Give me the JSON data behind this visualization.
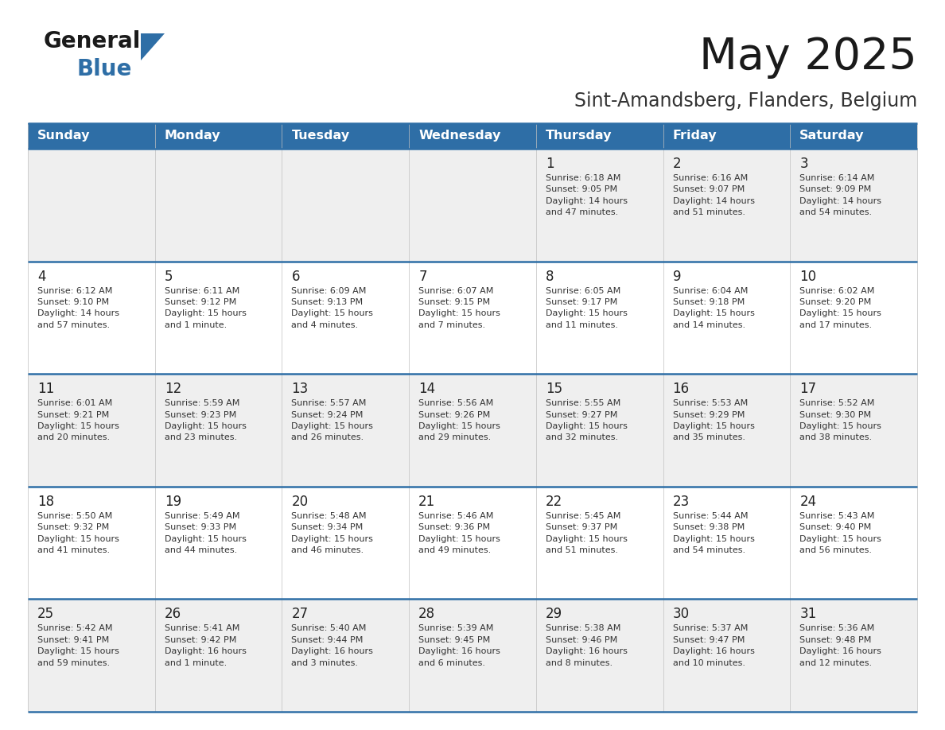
{
  "title": "May 2025",
  "subtitle": "Sint-Amandsberg, Flanders, Belgium",
  "header_bg": "#2E6EA6",
  "header_text_color": "#FFFFFF",
  "day_names": [
    "Sunday",
    "Monday",
    "Tuesday",
    "Wednesday",
    "Thursday",
    "Friday",
    "Saturday"
  ],
  "row_bg_even": "#EFEFEF",
  "row_bg_odd": "#FFFFFF",
  "grid_line_color": "#2E6EA6",
  "separator_line_color": "#3A6EA0",
  "text_color": "#333333",
  "day_num_color": "#222222",
  "logo_general_color": "#1A1A1A",
  "logo_blue_color": "#2E6EA6",
  "logo_triangle_color": "#2E6EA6",
  "weeks": [
    [
      {
        "day": null,
        "info": null
      },
      {
        "day": null,
        "info": null
      },
      {
        "day": null,
        "info": null
      },
      {
        "day": null,
        "info": null
      },
      {
        "day": 1,
        "info": "Sunrise: 6:18 AM\nSunset: 9:05 PM\nDaylight: 14 hours\nand 47 minutes."
      },
      {
        "day": 2,
        "info": "Sunrise: 6:16 AM\nSunset: 9:07 PM\nDaylight: 14 hours\nand 51 minutes."
      },
      {
        "day": 3,
        "info": "Sunrise: 6:14 AM\nSunset: 9:09 PM\nDaylight: 14 hours\nand 54 minutes."
      }
    ],
    [
      {
        "day": 4,
        "info": "Sunrise: 6:12 AM\nSunset: 9:10 PM\nDaylight: 14 hours\nand 57 minutes."
      },
      {
        "day": 5,
        "info": "Sunrise: 6:11 AM\nSunset: 9:12 PM\nDaylight: 15 hours\nand 1 minute."
      },
      {
        "day": 6,
        "info": "Sunrise: 6:09 AM\nSunset: 9:13 PM\nDaylight: 15 hours\nand 4 minutes."
      },
      {
        "day": 7,
        "info": "Sunrise: 6:07 AM\nSunset: 9:15 PM\nDaylight: 15 hours\nand 7 minutes."
      },
      {
        "day": 8,
        "info": "Sunrise: 6:05 AM\nSunset: 9:17 PM\nDaylight: 15 hours\nand 11 minutes."
      },
      {
        "day": 9,
        "info": "Sunrise: 6:04 AM\nSunset: 9:18 PM\nDaylight: 15 hours\nand 14 minutes."
      },
      {
        "day": 10,
        "info": "Sunrise: 6:02 AM\nSunset: 9:20 PM\nDaylight: 15 hours\nand 17 minutes."
      }
    ],
    [
      {
        "day": 11,
        "info": "Sunrise: 6:01 AM\nSunset: 9:21 PM\nDaylight: 15 hours\nand 20 minutes."
      },
      {
        "day": 12,
        "info": "Sunrise: 5:59 AM\nSunset: 9:23 PM\nDaylight: 15 hours\nand 23 minutes."
      },
      {
        "day": 13,
        "info": "Sunrise: 5:57 AM\nSunset: 9:24 PM\nDaylight: 15 hours\nand 26 minutes."
      },
      {
        "day": 14,
        "info": "Sunrise: 5:56 AM\nSunset: 9:26 PM\nDaylight: 15 hours\nand 29 minutes."
      },
      {
        "day": 15,
        "info": "Sunrise: 5:55 AM\nSunset: 9:27 PM\nDaylight: 15 hours\nand 32 minutes."
      },
      {
        "day": 16,
        "info": "Sunrise: 5:53 AM\nSunset: 9:29 PM\nDaylight: 15 hours\nand 35 minutes."
      },
      {
        "day": 17,
        "info": "Sunrise: 5:52 AM\nSunset: 9:30 PM\nDaylight: 15 hours\nand 38 minutes."
      }
    ],
    [
      {
        "day": 18,
        "info": "Sunrise: 5:50 AM\nSunset: 9:32 PM\nDaylight: 15 hours\nand 41 minutes."
      },
      {
        "day": 19,
        "info": "Sunrise: 5:49 AM\nSunset: 9:33 PM\nDaylight: 15 hours\nand 44 minutes."
      },
      {
        "day": 20,
        "info": "Sunrise: 5:48 AM\nSunset: 9:34 PM\nDaylight: 15 hours\nand 46 minutes."
      },
      {
        "day": 21,
        "info": "Sunrise: 5:46 AM\nSunset: 9:36 PM\nDaylight: 15 hours\nand 49 minutes."
      },
      {
        "day": 22,
        "info": "Sunrise: 5:45 AM\nSunset: 9:37 PM\nDaylight: 15 hours\nand 51 minutes."
      },
      {
        "day": 23,
        "info": "Sunrise: 5:44 AM\nSunset: 9:38 PM\nDaylight: 15 hours\nand 54 minutes."
      },
      {
        "day": 24,
        "info": "Sunrise: 5:43 AM\nSunset: 9:40 PM\nDaylight: 15 hours\nand 56 minutes."
      }
    ],
    [
      {
        "day": 25,
        "info": "Sunrise: 5:42 AM\nSunset: 9:41 PM\nDaylight: 15 hours\nand 59 minutes."
      },
      {
        "day": 26,
        "info": "Sunrise: 5:41 AM\nSunset: 9:42 PM\nDaylight: 16 hours\nand 1 minute."
      },
      {
        "day": 27,
        "info": "Sunrise: 5:40 AM\nSunset: 9:44 PM\nDaylight: 16 hours\nand 3 minutes."
      },
      {
        "day": 28,
        "info": "Sunrise: 5:39 AM\nSunset: 9:45 PM\nDaylight: 16 hours\nand 6 minutes."
      },
      {
        "day": 29,
        "info": "Sunrise: 5:38 AM\nSunset: 9:46 PM\nDaylight: 16 hours\nand 8 minutes."
      },
      {
        "day": 30,
        "info": "Sunrise: 5:37 AM\nSunset: 9:47 PM\nDaylight: 16 hours\nand 10 minutes."
      },
      {
        "day": 31,
        "info": "Sunrise: 5:36 AM\nSunset: 9:48 PM\nDaylight: 16 hours\nand 12 minutes."
      }
    ]
  ]
}
